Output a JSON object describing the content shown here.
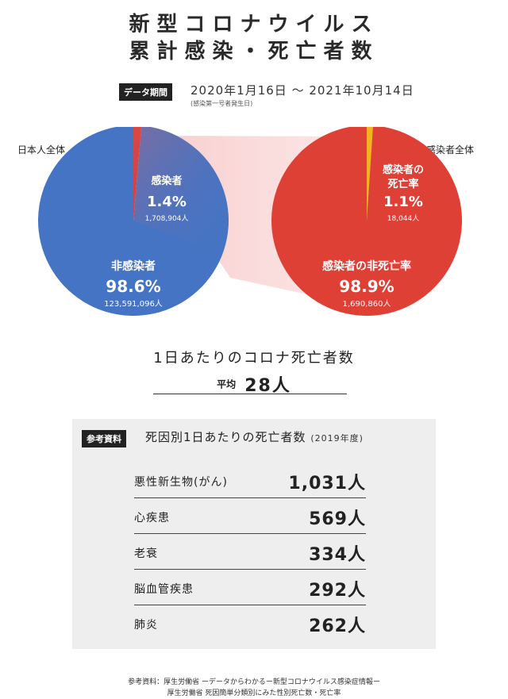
{
  "title": {
    "line1": "新型コロナウイルス",
    "line2": "累計感染・死亡者数"
  },
  "period": {
    "label": "データ期間",
    "range": "2020年1月16日 〜 2021年10月14日",
    "note": "(感染第一号者発生日)"
  },
  "chart_data": [
    {
      "type": "pie",
      "title": "日本人全体",
      "slices": [
        {
          "label": "感染者",
          "percent_text": "1.4%",
          "count_text": "1,708,904人",
          "value": 1708904,
          "color": "#d63a35"
        },
        {
          "label": "非感染者",
          "percent_text": "98.6%",
          "count_text": "123,591,096人",
          "value": 123591096,
          "color": "#4574c4"
        }
      ]
    },
    {
      "type": "pie",
      "title": "感染者全体",
      "slices": [
        {
          "label": "感染者の死亡率",
          "percent_text": "1.1%",
          "count_text": "18,044人",
          "value": 18044,
          "color": "#f3b31c"
        },
        {
          "label": "感染者の非死亡率",
          "percent_text": "98.9%",
          "count_text": "1,690,860人",
          "value": 1690860,
          "color": "#df4036"
        }
      ]
    }
  ],
  "daily_deaths": {
    "title": "1日あたりのコロナ死亡者数",
    "label": "平均",
    "value": "28人"
  },
  "reference": {
    "label": "参考資料",
    "title": "死因別1日あたりの死亡者数",
    "year": "(2019年度)",
    "rows": [
      {
        "cause": "悪性新生物(がん)",
        "value": "1,031人"
      },
      {
        "cause": "心疾患",
        "value": "569人"
      },
      {
        "cause": "老衰",
        "value": "334人"
      },
      {
        "cause": "脳血管疾患",
        "value": "292人"
      },
      {
        "cause": "肺炎",
        "value": "262人"
      }
    ]
  },
  "footer": {
    "line1": "参考資料：厚生労働省 ーデータからわかるー新型コロナウイルス感染症情報ー",
    "line2": "厚生労働省 死因簡単分類別にみた性別死亡数・死亡率"
  }
}
